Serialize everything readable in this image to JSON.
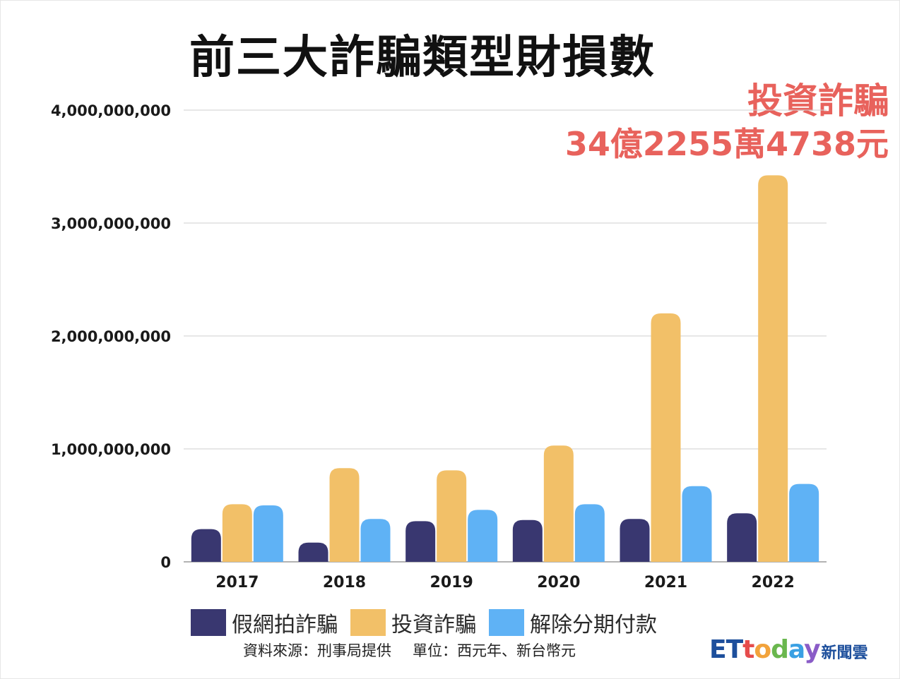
{
  "title": "前三大詐騙類型財損數",
  "callout": {
    "label": "投資詐騙",
    "value": "34億2255萬4738元",
    "color": "#e8625c"
  },
  "colors": {
    "假網拍詐騙": "#393770",
    "投資詐騙": "#f2c068",
    "解除分期付款": "#5fb2f5",
    "grid": "#cfcfcf",
    "logo_blue": "#1d4f9c"
  },
  "chart_data": {
    "type": "bar",
    "categories": [
      "2017",
      "2018",
      "2019",
      "2020",
      "2021",
      "2022"
    ],
    "series": [
      {
        "name": "假網拍詐騙",
        "color": "#393770",
        "values": [
          290000000,
          170000000,
          360000000,
          370000000,
          380000000,
          430000000
        ]
      },
      {
        "name": "投資詐騙",
        "color": "#f2c068",
        "values": [
          510000000,
          830000000,
          810000000,
          1030000000,
          2200000000,
          3422554738
        ]
      },
      {
        "name": "解除分期付款",
        "color": "#5fb2f5",
        "values": [
          500000000,
          380000000,
          460000000,
          510000000,
          670000000,
          690000000
        ]
      }
    ],
    "yticks": [
      "0",
      "1,000,000,000",
      "2,000,000,000",
      "3,000,000,000",
      "4,000,000,000"
    ],
    "ylim": [
      0,
      4000000000
    ],
    "legend_position": "bottom",
    "grid": true
  },
  "legend": {
    "items": [
      "假網拍詐騙",
      "投資詐騙",
      "解除分期付款"
    ]
  },
  "source": {
    "text": "資料來源：刑事局提供",
    "unit": "單位：西元年、新台幣元"
  },
  "logo": {
    "et": "ET",
    "today": [
      {
        "ch": "t",
        "color": "#e64c4c"
      },
      {
        "ch": "o",
        "color": "#f2a33c"
      },
      {
        "ch": "d",
        "color": "#6ab74e"
      },
      {
        "ch": "a",
        "color": "#3aa0e3"
      },
      {
        "ch": "y",
        "color": "#8a5cc7"
      }
    ],
    "sub": "新聞雲"
  }
}
